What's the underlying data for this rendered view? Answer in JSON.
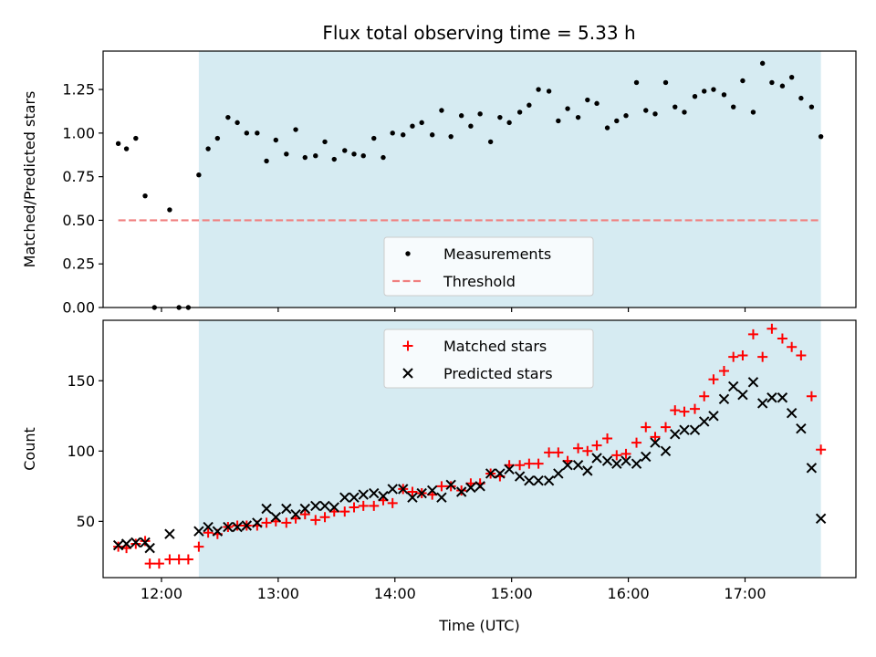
{
  "title": "Flux total observing time = 5.33 h",
  "colors": {
    "shade": "#add8e6",
    "threshold": "#f08080",
    "measurement": "#000000",
    "matched": "#ff0000",
    "predicted": "#000000"
  },
  "chart_data": [
    {
      "type": "scatter",
      "panel": "top",
      "ylabel": "Matched/Predicted stars",
      "xlim": [
        11.5,
        17.95
      ],
      "ylim": [
        0,
        1.47
      ],
      "yticks": [
        "0.00",
        "0.25",
        "0.50",
        "0.75",
        "1.00",
        "1.25"
      ],
      "ytick_values": [
        0,
        0.25,
        0.5,
        0.75,
        1.0,
        1.25
      ],
      "shaded_region": [
        12.32,
        17.65
      ],
      "threshold": {
        "name": "Threshold",
        "value": 0.5,
        "x_range": [
          11.63,
          17.65
        ]
      },
      "legend": {
        "location": "lower-center",
        "entries": [
          "Measurements",
          "Threshold"
        ]
      },
      "series": [
        {
          "name": "Measurements",
          "x": [
            11.63,
            11.7,
            11.78,
            11.86,
            11.94,
            12.07,
            12.15,
            12.23,
            12.32,
            12.4,
            12.48,
            12.57,
            12.65,
            12.73,
            12.82,
            12.9,
            12.98,
            13.07,
            13.15,
            13.23,
            13.32,
            13.4,
            13.48,
            13.57,
            13.65,
            13.73,
            13.82,
            13.9,
            13.98,
            14.07,
            14.15,
            14.23,
            14.32,
            14.4,
            14.48,
            14.57,
            14.65,
            14.73,
            14.82,
            14.9,
            14.98,
            15.07,
            15.15,
            15.23,
            15.32,
            15.4,
            15.48,
            15.57,
            15.65,
            15.73,
            15.82,
            15.9,
            15.98,
            16.07,
            16.15,
            16.23,
            16.32,
            16.4,
            16.48,
            16.57,
            16.65,
            16.73,
            16.82,
            16.9,
            16.98,
            17.07,
            17.15,
            17.23,
            17.32,
            17.4,
            17.48,
            17.57,
            17.65
          ],
          "y": [
            0.94,
            0.91,
            0.97,
            0.64,
            0.0,
            0.56,
            0.0,
            0.0,
            0.76,
            0.91,
            0.97,
            1.09,
            1.06,
            1.0,
            1.0,
            0.84,
            0.96,
            0.88,
            1.02,
            0.86,
            0.87,
            0.95,
            0.85,
            0.9,
            0.88,
            0.87,
            0.97,
            0.86,
            1.0,
            0.99,
            1.04,
            1.06,
            0.99,
            1.13,
            0.98,
            1.1,
            1.04,
            1.11,
            0.95,
            1.09,
            1.06,
            1.12,
            1.16,
            1.25,
            1.24,
            1.07,
            1.14,
            1.09,
            1.19,
            1.17,
            1.03,
            1.07,
            1.1,
            1.29,
            1.13,
            1.11,
            1.29,
            1.15,
            1.12,
            1.21,
            1.24,
            1.25,
            1.22,
            1.15,
            1.3,
            1.12,
            1.4,
            1.29,
            1.27,
            1.32,
            1.2,
            1.15,
            0.98
          ]
        }
      ]
    },
    {
      "type": "scatter",
      "panel": "bottom",
      "xlabel": "Time (UTC)",
      "ylabel": "Count",
      "xlim": [
        11.5,
        17.95
      ],
      "ylim": [
        10,
        193
      ],
      "yticks": [
        "50",
        "100",
        "150"
      ],
      "ytick_values": [
        50,
        100,
        150
      ],
      "xticks": [
        "12:00",
        "13:00",
        "14:00",
        "15:00",
        "16:00",
        "17:00"
      ],
      "xtick_values": [
        12,
        13,
        14,
        15,
        16,
        17
      ],
      "shaded_region": [
        12.32,
        17.65
      ],
      "legend": {
        "location": "top-center",
        "entries": [
          "Matched stars",
          "Predicted stars"
        ]
      },
      "series": [
        {
          "name": "Matched stars",
          "x": [
            11.63,
            11.7,
            11.78,
            11.86,
            11.9,
            11.98,
            12.07,
            12.15,
            12.23,
            12.32,
            12.4,
            12.48,
            12.57,
            12.65,
            12.73,
            12.82,
            12.9,
            12.98,
            13.07,
            13.15,
            13.23,
            13.32,
            13.4,
            13.48,
            13.57,
            13.65,
            13.73,
            13.82,
            13.9,
            13.98,
            14.07,
            14.15,
            14.23,
            14.32,
            14.4,
            14.48,
            14.57,
            14.65,
            14.73,
            14.82,
            14.9,
            14.98,
            15.07,
            15.15,
            15.23,
            15.32,
            15.4,
            15.48,
            15.57,
            15.65,
            15.73,
            15.82,
            15.9,
            15.98,
            16.07,
            16.15,
            16.23,
            16.32,
            16.4,
            16.48,
            16.57,
            16.65,
            16.73,
            16.82,
            16.9,
            16.98,
            17.07,
            17.15,
            17.23,
            17.32,
            17.4,
            17.48,
            17.57,
            17.65
          ],
          "y": [
            32,
            31,
            34,
            36,
            20,
            20,
            23,
            23,
            23,
            32,
            42,
            41,
            46,
            47,
            47,
            47,
            49,
            50,
            49,
            52,
            55,
            51,
            53,
            57,
            57,
            60,
            61,
            61,
            65,
            63,
            73,
            71,
            70,
            69,
            75,
            75,
            72,
            77,
            77,
            84,
            82,
            90,
            90,
            91,
            91,
            99,
            99,
            93,
            102,
            100,
            104,
            109,
            97,
            98,
            106,
            117,
            110,
            117,
            129,
            128,
            130,
            139,
            151,
            157,
            167,
            168,
            183,
            167,
            187,
            180,
            174,
            168,
            139,
            101
          ]
        },
        {
          "name": "Predicted stars",
          "x": [
            11.63,
            11.7,
            11.78,
            11.86,
            11.9,
            12.07,
            12.32,
            12.4,
            12.48,
            12.57,
            12.65,
            12.73,
            12.82,
            12.9,
            12.98,
            13.07,
            13.15,
            13.23,
            13.32,
            13.4,
            13.48,
            13.57,
            13.65,
            13.73,
            13.82,
            13.9,
            13.98,
            14.07,
            14.15,
            14.23,
            14.32,
            14.4,
            14.48,
            14.57,
            14.65,
            14.73,
            14.82,
            14.9,
            14.98,
            15.07,
            15.15,
            15.23,
            15.32,
            15.4,
            15.48,
            15.57,
            15.65,
            15.73,
            15.82,
            15.9,
            15.98,
            16.07,
            16.15,
            16.23,
            16.32,
            16.4,
            16.48,
            16.57,
            16.65,
            16.73,
            16.82,
            16.9,
            16.98,
            17.07,
            17.15,
            17.23,
            17.32,
            17.4,
            17.48,
            17.57,
            17.65
          ],
          "y": [
            33,
            34,
            35,
            35,
            31,
            41,
            43,
            46,
            43,
            46,
            46,
            47,
            49,
            59,
            53,
            59,
            55,
            59,
            61,
            61,
            60,
            67,
            67,
            69,
            70,
            68,
            73,
            73,
            67,
            70,
            72,
            67,
            76,
            71,
            74,
            75,
            84,
            84,
            87,
            82,
            79,
            79,
            79,
            84,
            90,
            90,
            86,
            95,
            93,
            91,
            93,
            91,
            96,
            106,
            100,
            112,
            115,
            115,
            121,
            125,
            137,
            146,
            140,
            149,
            134,
            138,
            138,
            127,
            116,
            88,
            52
          ]
        }
      ]
    }
  ]
}
